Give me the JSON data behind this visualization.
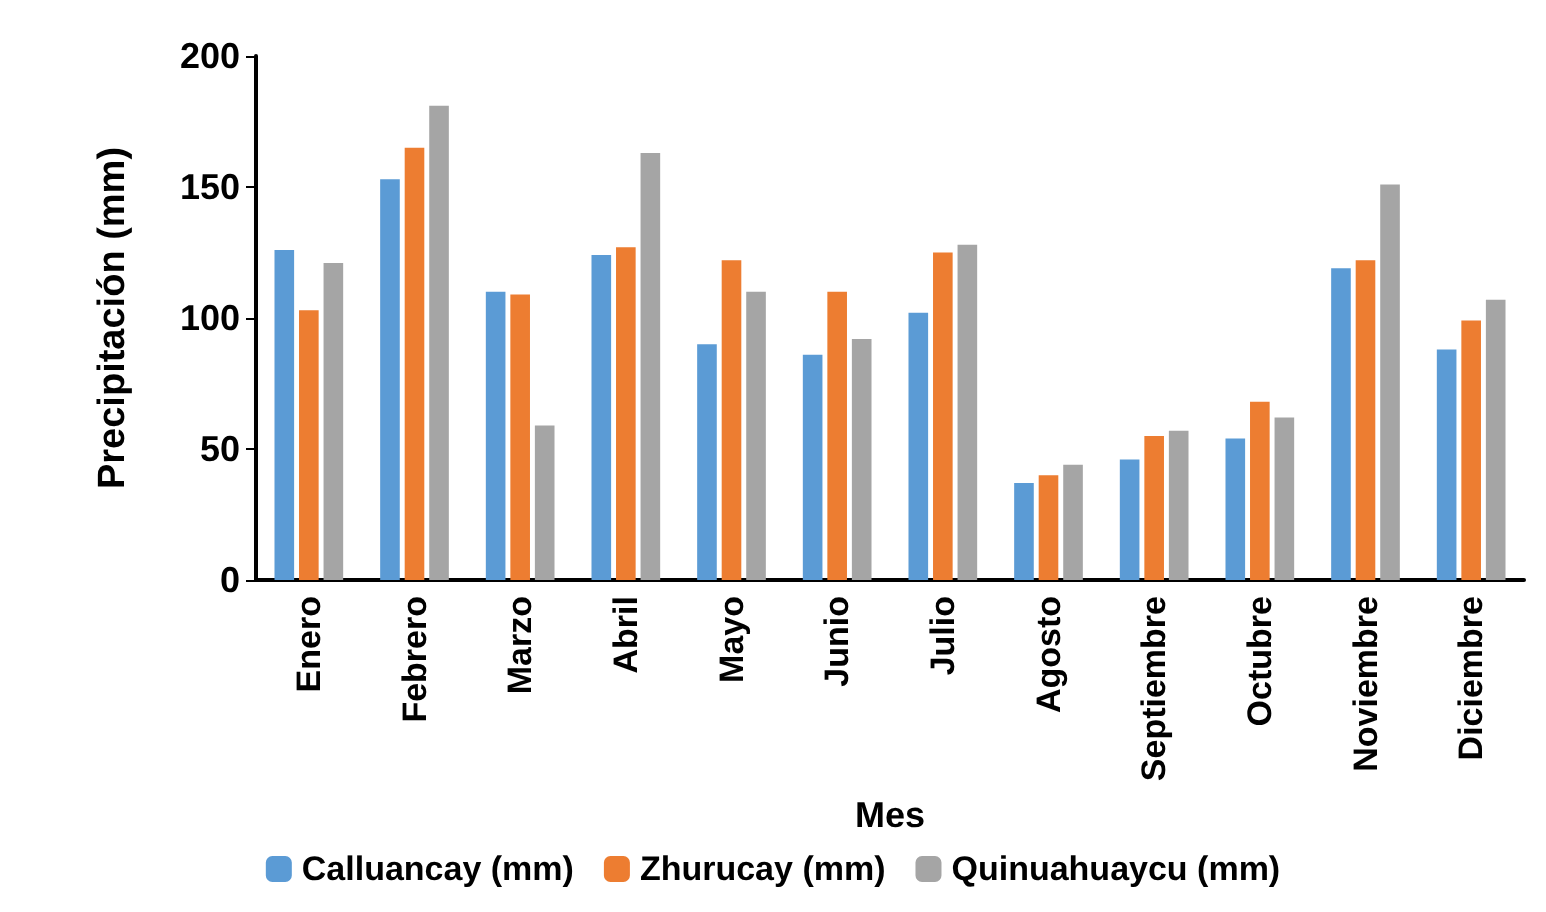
{
  "chart_data": {
    "type": "bar",
    "xlabel": "Mes",
    "ylabel": "Precipitación (mm)",
    "categories": [
      "Enero",
      "Febrero",
      "Marzo",
      "Abril",
      "Mayo",
      "Junio",
      "Julio",
      "Agosto",
      "Septiembre",
      "Octubre",
      "Noviembre",
      "Diciembre"
    ],
    "series": [
      {
        "name": "Calluancay (mm)",
        "color": "#5b9bd5",
        "values": [
          126,
          153,
          110,
          124,
          90,
          86,
          102,
          37,
          46,
          54,
          119,
          88
        ]
      },
      {
        "name": "Zhurucay (mm)",
        "color": "#ed7d31",
        "values": [
          103,
          165,
          109,
          127,
          122,
          110,
          125,
          40,
          55,
          68,
          122,
          99
        ]
      },
      {
        "name": "Quinuahuaycu (mm)",
        "color": "#a5a5a5",
        "values": [
          121,
          181,
          59,
          163,
          110,
          92,
          128,
          44,
          57,
          62,
          151,
          107
        ]
      }
    ],
    "ylim": [
      0,
      200
    ],
    "yticks": [
      0,
      50,
      100,
      150,
      200
    ],
    "grid": false,
    "legend": "bottom"
  }
}
